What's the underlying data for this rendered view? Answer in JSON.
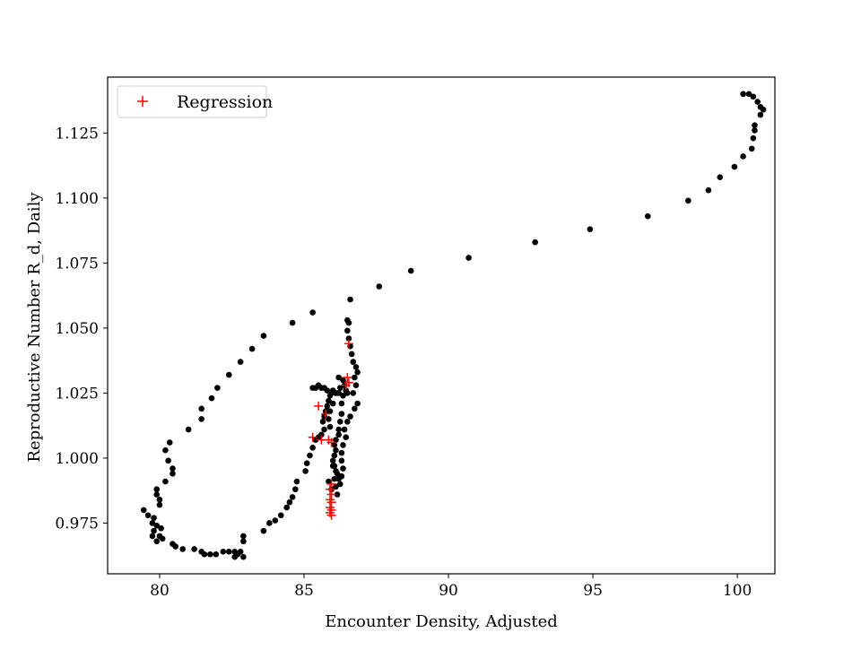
{
  "chart_data": {
    "type": "scatter",
    "title": "",
    "xlabel": "Encounter Density, Adjusted",
    "ylabel": "Reproductive Number R_d, Daily",
    "xlim": [
      78.2,
      101.3
    ],
    "ylim": [
      0.9555,
      1.1465
    ],
    "x_ticks": [
      80,
      85,
      90,
      95,
      100
    ],
    "y_ticks": [
      0.975,
      1.0,
      1.025,
      1.05,
      1.075,
      1.1,
      1.125
    ],
    "x_tick_labels": [
      "80",
      "85",
      "90",
      "95",
      "100"
    ],
    "y_tick_labels": [
      "0.975",
      "1.000",
      "1.025",
      "1.050",
      "1.075",
      "1.100",
      "1.125"
    ],
    "grid": false,
    "legend": {
      "position": "top-left",
      "entries": [
        "Regression"
      ]
    },
    "series": [
      {
        "marker": "dot",
        "color": "#000000",
        "points": [
          [
            100.2,
            1.14
          ],
          [
            100.4,
            1.14
          ],
          [
            100.55,
            1.139
          ],
          [
            100.7,
            1.137
          ],
          [
            100.8,
            1.135
          ],
          [
            100.9,
            1.134
          ],
          [
            100.8,
            1.132
          ],
          [
            100.6,
            1.128
          ],
          [
            100.6,
            1.126
          ],
          [
            100.55,
            1.123
          ],
          [
            100.5,
            1.119
          ],
          [
            100.2,
            1.116
          ],
          [
            99.9,
            1.112
          ],
          [
            99.4,
            1.108
          ],
          [
            99.0,
            1.103
          ],
          [
            98.3,
            1.099
          ],
          [
            96.9,
            1.093
          ],
          [
            94.9,
            1.088
          ],
          [
            93.0,
            1.083
          ],
          [
            90.7,
            1.077
          ],
          [
            88.7,
            1.072
          ],
          [
            87.6,
            1.066
          ],
          [
            86.6,
            1.061
          ],
          [
            85.3,
            1.056
          ],
          [
            84.6,
            1.052
          ],
          [
            83.6,
            1.047
          ],
          [
            83.2,
            1.042
          ],
          [
            82.8,
            1.037
          ],
          [
            82.4,
            1.032
          ],
          [
            82.0,
            1.027
          ],
          [
            81.8,
            1.023
          ],
          [
            81.45,
            1.019
          ],
          [
            81.45,
            1.015
          ],
          [
            81.0,
            1.011
          ],
          [
            80.35,
            1.006
          ],
          [
            80.2,
            1.003
          ],
          [
            80.3,
            0.999
          ],
          [
            80.45,
            0.996
          ],
          [
            80.45,
            0.994
          ],
          [
            80.2,
            0.991
          ],
          [
            79.9,
            0.988
          ],
          [
            79.9,
            0.986
          ],
          [
            80.0,
            0.984
          ],
          [
            80.0,
            0.982
          ],
          [
            79.45,
            0.98
          ],
          [
            79.6,
            0.978
          ],
          [
            79.8,
            0.977
          ],
          [
            79.75,
            0.975
          ],
          [
            79.9,
            0.974
          ],
          [
            80.05,
            0.973
          ],
          [
            79.8,
            0.972
          ],
          [
            79.75,
            0.97
          ],
          [
            80.0,
            0.97
          ],
          [
            80.1,
            0.969
          ],
          [
            79.9,
            0.968
          ],
          [
            80.45,
            0.967
          ],
          [
            80.55,
            0.966
          ],
          [
            80.8,
            0.965
          ],
          [
            81.2,
            0.965
          ],
          [
            81.45,
            0.964
          ],
          [
            81.55,
            0.963
          ],
          [
            81.75,
            0.963
          ],
          [
            81.95,
            0.963
          ],
          [
            82.2,
            0.964
          ],
          [
            82.4,
            0.964
          ],
          [
            82.6,
            0.964
          ],
          [
            82.7,
            0.963
          ],
          [
            82.6,
            0.962
          ],
          [
            82.9,
            0.962
          ],
          [
            82.8,
            0.964
          ],
          [
            82.9,
            0.968
          ],
          [
            82.9,
            0.97
          ],
          [
            83.6,
            0.972
          ],
          [
            83.8,
            0.975
          ],
          [
            84.0,
            0.976
          ],
          [
            84.2,
            0.978
          ],
          [
            84.4,
            0.981
          ],
          [
            84.5,
            0.983
          ],
          [
            84.6,
            0.985
          ],
          [
            84.7,
            0.988
          ],
          [
            84.75,
            0.991
          ],
          [
            85.05,
            0.995
          ],
          [
            85.1,
            0.998
          ],
          [
            85.2,
            1.001
          ],
          [
            85.3,
            1.004
          ],
          [
            85.4,
            1.007
          ],
          [
            85.5,
            1.008
          ],
          [
            85.6,
            1.009
          ],
          [
            85.7,
            1.011
          ],
          [
            85.65,
            1.014
          ],
          [
            85.7,
            1.016
          ],
          [
            85.75,
            1.018
          ],
          [
            85.8,
            1.02
          ],
          [
            85.85,
            1.022
          ],
          [
            85.9,
            1.024
          ],
          [
            85.95,
            1.025
          ],
          [
            86.1,
            1.025
          ],
          [
            86.2,
            1.025
          ],
          [
            86.25,
            1.027
          ],
          [
            86.0,
            1.026
          ],
          [
            85.8,
            1.026
          ],
          [
            85.6,
            1.027
          ],
          [
            85.4,
            1.027
          ],
          [
            85.3,
            1.027
          ],
          [
            85.5,
            1.028
          ],
          [
            85.7,
            1.027
          ],
          [
            86.2,
            1.031
          ],
          [
            86.35,
            1.03
          ],
          [
            86.4,
            1.028
          ],
          [
            86.45,
            1.026
          ],
          [
            86.5,
            1.025
          ],
          [
            86.35,
            1.024
          ],
          [
            86.3,
            1.021
          ],
          [
            86.3,
            1.017
          ],
          [
            86.25,
            1.014
          ],
          [
            86.2,
            1.011
          ],
          [
            86.2,
            1.009
          ],
          [
            86.1,
            1.007
          ],
          [
            86.05,
            1.005
          ],
          [
            86.1,
            1.003
          ],
          [
            86.05,
            1.001
          ],
          [
            86.0,
            0.999
          ],
          [
            86.05,
            0.997
          ],
          [
            86.1,
            0.995
          ],
          [
            86.15,
            0.994
          ],
          [
            86.2,
            0.992
          ],
          [
            86.25,
            0.99
          ],
          [
            86.3,
            0.993
          ],
          [
            86.35,
            0.996
          ],
          [
            86.3,
            0.999
          ],
          [
            86.3,
            1.002
          ],
          [
            86.35,
            1.005
          ],
          [
            86.45,
            1.008
          ],
          [
            86.4,
            1.011
          ],
          [
            86.5,
            1.014
          ],
          [
            86.6,
            1.016
          ],
          [
            86.75,
            1.019
          ],
          [
            86.85,
            1.021
          ],
          [
            86.7,
            1.025
          ],
          [
            86.8,
            1.028
          ],
          [
            86.75,
            1.031
          ],
          [
            86.85,
            1.033
          ],
          [
            86.8,
            1.035
          ],
          [
            86.7,
            1.037
          ],
          [
            86.65,
            1.04
          ],
          [
            86.6,
            1.043
          ],
          [
            86.55,
            1.046
          ],
          [
            86.5,
            1.049
          ],
          [
            86.55,
            1.052
          ],
          [
            86.5,
            1.053
          ],
          [
            86.0,
            1.021
          ],
          [
            85.9,
            1.018
          ],
          [
            85.85,
            1.015
          ],
          [
            85.9,
            1.012
          ],
          [
            86.0,
            0.997
          ],
          [
            86.05,
            0.992
          ],
          [
            86.1,
            0.989
          ],
          [
            86.15,
            0.986
          ],
          [
            85.95,
            0.988
          ],
          [
            85.85,
            0.991
          ]
        ]
      },
      {
        "name": "Regression",
        "marker": "plus",
        "color": "#ff0000",
        "points": [
          [
            86.55,
            1.044
          ],
          [
            86.5,
            1.031
          ],
          [
            86.55,
            1.029
          ],
          [
            86.45,
            1.028
          ],
          [
            85.5,
            1.02
          ],
          [
            85.75,
            1.017
          ],
          [
            85.3,
            1.008
          ],
          [
            85.6,
            1.007
          ],
          [
            85.95,
            1.006
          ],
          [
            85.85,
            1.007
          ],
          [
            85.95,
            0.99
          ],
          [
            85.9,
            0.988
          ],
          [
            85.95,
            0.986
          ],
          [
            85.9,
            0.984
          ],
          [
            85.95,
            0.983
          ],
          [
            85.9,
            0.981
          ],
          [
            85.95,
            0.98
          ],
          [
            85.9,
            0.979
          ],
          [
            85.95,
            0.978
          ]
        ]
      }
    ]
  }
}
